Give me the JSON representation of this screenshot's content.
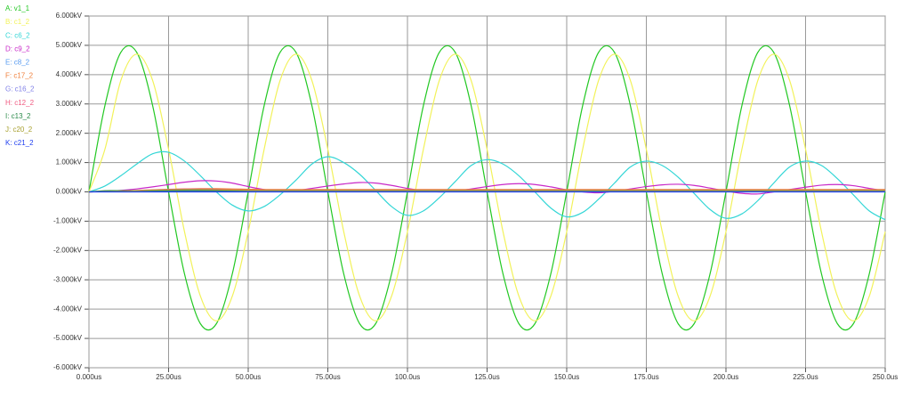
{
  "chart_data": {
    "type": "line",
    "x": [
      0,
      5,
      10,
      15,
      20,
      25,
      30,
      35,
      40,
      45,
      50,
      55,
      60,
      65,
      70,
      75,
      80,
      85,
      90,
      95,
      100,
      105,
      110,
      115,
      120,
      125,
      130,
      135,
      140,
      145,
      150,
      155,
      160,
      165,
      170,
      175,
      180,
      185,
      190,
      195,
      200,
      205,
      210,
      215,
      220,
      225,
      230,
      235,
      240,
      245,
      250
    ],
    "xlim": [
      0,
      250
    ],
    "xticks": [
      {
        "value": 0,
        "label": "0.000us"
      },
      {
        "value": 25,
        "label": "25.00us"
      },
      {
        "value": 50,
        "label": "50.00us"
      },
      {
        "value": 75,
        "label": "75.00us"
      },
      {
        "value": 100,
        "label": "100.0us"
      },
      {
        "value": 125,
        "label": "125.0us"
      },
      {
        "value": 150,
        "label": "150.0us"
      },
      {
        "value": 175,
        "label": "175.0us"
      },
      {
        "value": 200,
        "label": "200.0us"
      },
      {
        "value": 225,
        "label": "225.0us"
      },
      {
        "value": 250,
        "label": "250.0us"
      }
    ],
    "ylim": [
      -6,
      6
    ],
    "yticks": [
      {
        "value": 6,
        "label": "6.000kV"
      },
      {
        "value": 5,
        "label": "5.000kV"
      },
      {
        "value": 4,
        "label": "4.000kV"
      },
      {
        "value": 3,
        "label": "3.000kV"
      },
      {
        "value": 2,
        "label": "2.000kV"
      },
      {
        "value": 1,
        "label": "1.000kV"
      },
      {
        "value": 0,
        "label": "0.000kV"
      },
      {
        "value": -1,
        "label": "-1.000kV"
      },
      {
        "value": -2,
        "label": "-2.000kV"
      },
      {
        "value": -3,
        "label": "-3.000kV"
      },
      {
        "value": -4,
        "label": "-4.000kV"
      },
      {
        "value": -5,
        "label": "-5.000kV"
      },
      {
        "value": -6,
        "label": "-6.000kV"
      }
    ],
    "grid": true,
    "series": [
      {
        "name": "A: v1_1",
        "color": "#22c822",
        "values": [
          0,
          2.94,
          4.76,
          4.76,
          2.94,
          0,
          -2.8,
          -4.5,
          -4.5,
          -2.8,
          0,
          2.94,
          4.76,
          4.76,
          2.94,
          0,
          -2.8,
          -4.5,
          -4.5,
          -2.8,
          0,
          2.94,
          4.76,
          4.76,
          2.94,
          0,
          -2.8,
          -4.5,
          -4.5,
          -2.8,
          0,
          2.94,
          4.76,
          4.76,
          2.94,
          0,
          -2.8,
          -4.5,
          -4.5,
          -2.8,
          0,
          2.94,
          4.76,
          4.76,
          2.94,
          0,
          -2.8,
          -4.5,
          -4.5,
          -2.8,
          0
        ]
      },
      {
        "name": "B: c1_2",
        "color": "#f2f25a",
        "values": [
          0,
          1.45,
          3.8,
          4.7,
          3.8,
          1.45,
          -1.36,
          -3.56,
          -4.4,
          -3.56,
          -1.36,
          1.45,
          3.8,
          4.7,
          3.8,
          1.45,
          -1.36,
          -3.56,
          -4.4,
          -3.56,
          -1.36,
          1.45,
          3.8,
          4.7,
          3.8,
          1.45,
          -1.36,
          -3.56,
          -4.4,
          -3.56,
          -1.36,
          1.45,
          3.8,
          4.7,
          3.8,
          1.45,
          -1.36,
          -3.56,
          -4.4,
          -3.56,
          -1.36,
          1.45,
          3.8,
          4.7,
          3.8,
          1.45,
          -1.36,
          -3.56,
          -4.4,
          -3.56,
          -1.36
        ]
      },
      {
        "name": "C: c6_2",
        "color": "#33d6d6",
        "values": [
          0,
          0.2,
          0.55,
          0.95,
          1.3,
          1.35,
          1.05,
          0.55,
          0.0,
          -0.45,
          -0.65,
          -0.5,
          -0.1,
          0.4,
          0.95,
          1.2,
          1.0,
          0.6,
          0.05,
          -0.5,
          -0.8,
          -0.65,
          -0.2,
          0.35,
          0.9,
          1.1,
          0.95,
          0.55,
          0.0,
          -0.55,
          -0.85,
          -0.7,
          -0.25,
          0.3,
          0.85,
          1.05,
          0.9,
          0.5,
          -0.05,
          -0.6,
          -0.9,
          -0.75,
          -0.3,
          0.3,
          0.85,
          1.05,
          0.9,
          0.45,
          -0.1,
          -0.65,
          -0.95
        ]
      },
      {
        "name": "D: c9_2",
        "color": "#c828c8",
        "values": [
          0,
          0.02,
          0.05,
          0.1,
          0.17,
          0.25,
          0.33,
          0.38,
          0.37,
          0.3,
          0.18,
          0.08,
          0.03,
          0.05,
          0.12,
          0.2,
          0.27,
          0.32,
          0.3,
          0.22,
          0.12,
          0.04,
          0.0,
          0.03,
          0.1,
          0.18,
          0.25,
          0.28,
          0.25,
          0.17,
          0.07,
          0.0,
          -0.03,
          0.02,
          0.1,
          0.18,
          0.24,
          0.26,
          0.22,
          0.13,
          0.03,
          -0.05,
          -0.07,
          0.0,
          0.08,
          0.16,
          0.23,
          0.25,
          0.21,
          0.12,
          0.03
        ]
      },
      {
        "name": "E: c8_2",
        "color": "#5a9cf0",
        "values": [
          0,
          0.01,
          0.02,
          0.03,
          0.04,
          0.05,
          0.06,
          0.06,
          0.05,
          0.04,
          0.04,
          0.05,
          0.05,
          0.05,
          0.05,
          0.05,
          0.05,
          0.05,
          0.05,
          0.05,
          0.05,
          0.05,
          0.05,
          0.05,
          0.05,
          0.05,
          0.05,
          0.05,
          0.05,
          0.05,
          0.05,
          0.05,
          0.05,
          0.05,
          0.05,
          0.05,
          0.05,
          0.05,
          0.05,
          0.05,
          0.05,
          0.05,
          0.05,
          0.05,
          0.05,
          0.05,
          0.05,
          0.05,
          0.05,
          0.05,
          0.05
        ]
      },
      {
        "name": "F: c17_2",
        "color": "#f0803c",
        "values": [
          0,
          0.01,
          0.02,
          0.04,
          0.06,
          0.08,
          0.1,
          0.11,
          0.11,
          0.1,
          0.09,
          0.08,
          0.08,
          0.08,
          0.08,
          0.08,
          0.08,
          0.08,
          0.08,
          0.08,
          0.08,
          0.08,
          0.08,
          0.08,
          0.08,
          0.08,
          0.08,
          0.08,
          0.08,
          0.08,
          0.08,
          0.08,
          0.08,
          0.08,
          0.08,
          0.08,
          0.08,
          0.08,
          0.08,
          0.08,
          0.08,
          0.08,
          0.08,
          0.08,
          0.08,
          0.08,
          0.08,
          0.08,
          0.08,
          0.08,
          0.08
        ]
      },
      {
        "name": "G: c16_2",
        "color": "#8080e8",
        "values": [
          0,
          0.03,
          0.03,
          0.03,
          0.03,
          0.03,
          0.03,
          0.03,
          0.03,
          0.03,
          0.03,
          0.03,
          0.03,
          0.03,
          0.03,
          0.03,
          0.03,
          0.03,
          0.03,
          0.03,
          0.03,
          0.03,
          0.03,
          0.03,
          0.03,
          0.03,
          0.03,
          0.03,
          0.03,
          0.03,
          0.03,
          0.03,
          0.03,
          0.03,
          0.03,
          0.03,
          0.03,
          0.03,
          0.03,
          0.03,
          0.03,
          0.03,
          0.03,
          0.03,
          0.03,
          0.03,
          0.03,
          0.03,
          0.03,
          0.03,
          0.03
        ]
      },
      {
        "name": "H: c12_2",
        "color": "#f05a80",
        "values": [
          0,
          0.01,
          0.03,
          0.05,
          0.07,
          0.09,
          0.1,
          0.1,
          0.09,
          0.07,
          0.06,
          0.06,
          0.06,
          0.06,
          0.06,
          0.06,
          0.06,
          0.06,
          0.06,
          0.06,
          0.06,
          0.06,
          0.06,
          0.06,
          0.06,
          0.06,
          0.06,
          0.06,
          0.06,
          0.06,
          0.06,
          0.06,
          0.06,
          0.06,
          0.06,
          0.06,
          0.06,
          0.06,
          0.06,
          0.06,
          0.06,
          0.06,
          0.06,
          0.06,
          0.06,
          0.06,
          0.06,
          0.06,
          0.06,
          0.06,
          0.06
        ]
      },
      {
        "name": "I: c13_2",
        "color": "#2a8a4a",
        "values": [
          0,
          0.04,
          0.04,
          0.04,
          0.04,
          0.04,
          0.04,
          0.04,
          0.04,
          0.04,
          0.04,
          0.04,
          0.04,
          0.04,
          0.04,
          0.04,
          0.04,
          0.04,
          0.04,
          0.04,
          0.04,
          0.04,
          0.04,
          0.04,
          0.04,
          0.04,
          0.04,
          0.04,
          0.04,
          0.04,
          0.04,
          0.04,
          0.04,
          0.04,
          0.04,
          0.04,
          0.04,
          0.04,
          0.04,
          0.04,
          0.04,
          0.04,
          0.04,
          0.04,
          0.04,
          0.04,
          0.04,
          0.04,
          0.04,
          0.04,
          0.04
        ]
      },
      {
        "name": "J: c20_2",
        "color": "#a8a030",
        "values": [
          0,
          0.01,
          0.02,
          0.04,
          0.06,
          0.07,
          0.08,
          0.08,
          0.07,
          0.06,
          0.05,
          0.05,
          0.05,
          0.05,
          0.05,
          0.05,
          0.05,
          0.05,
          0.05,
          0.05,
          0.05,
          0.05,
          0.05,
          0.05,
          0.05,
          0.05,
          0.05,
          0.05,
          0.05,
          0.05,
          0.05,
          0.05,
          0.05,
          0.05,
          0.05,
          0.05,
          0.05,
          0.05,
          0.05,
          0.05,
          0.05,
          0.05,
          0.05,
          0.05,
          0.05,
          0.05,
          0.05,
          0.05,
          0.05,
          0.05,
          0.05
        ]
      },
      {
        "name": "K: c21_2",
        "color": "#2040f0",
        "values": [
          0,
          0,
          0,
          0,
          0,
          0,
          0,
          0,
          0,
          0,
          0,
          0,
          0,
          0,
          0,
          0,
          0,
          0,
          0,
          0,
          0,
          0,
          0,
          0,
          0,
          0,
          0,
          0,
          0,
          0,
          0,
          0,
          0,
          0,
          0,
          0,
          0,
          0,
          0,
          0,
          0,
          0,
          0,
          0,
          0,
          0,
          0,
          0,
          0,
          0,
          0
        ]
      }
    ]
  }
}
